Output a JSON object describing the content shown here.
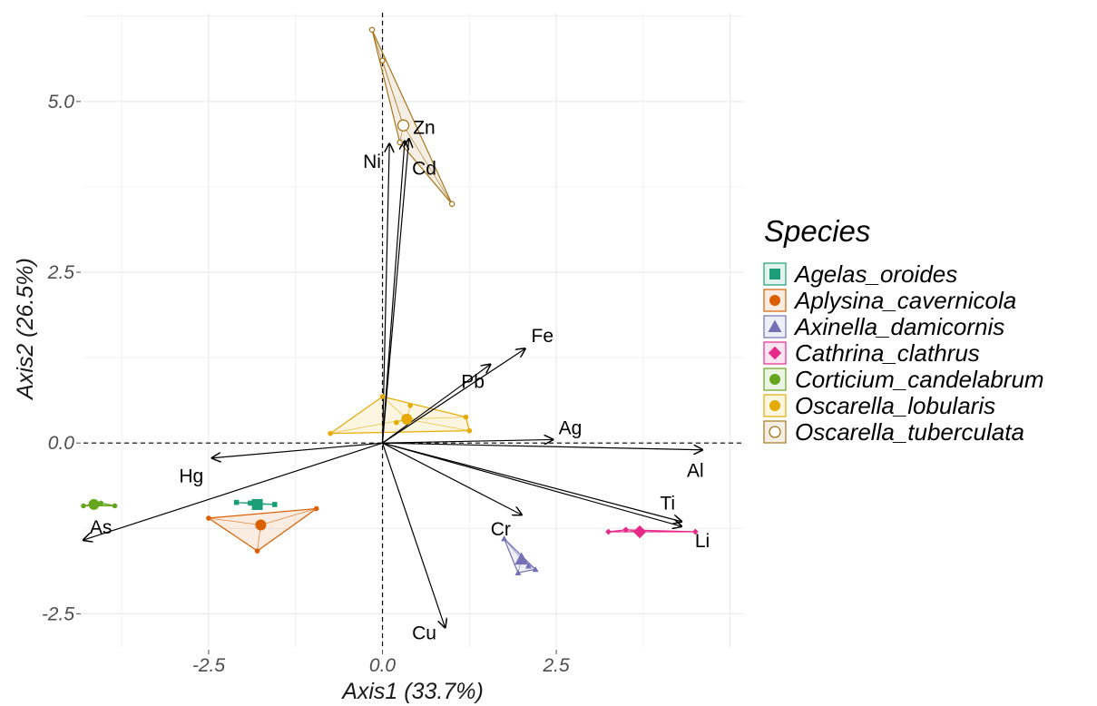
{
  "chart_data": {
    "type": "scatter",
    "subtype": "pca-biplot",
    "xlabel": "Axis1 (33.7%)",
    "ylabel": "Axis2 (26.5%)",
    "xlim": [
      -4.3,
      5.2
    ],
    "ylim": [
      -3.0,
      6.3
    ],
    "x_ticks": [
      -2.5,
      0.0,
      2.5
    ],
    "x_tick_labels": [
      "-2.5",
      "0.0",
      "2.5"
    ],
    "y_ticks": [
      -2.5,
      0.0,
      2.5,
      5.0
    ],
    "y_tick_labels": [
      "-2.5",
      "0.0",
      "2.5",
      "5.0"
    ],
    "grid": true,
    "reference_lines": {
      "x0": "dashed",
      "y0": "dashed"
    },
    "legend": {
      "title": "Species",
      "position": "right"
    },
    "series": [
      {
        "name": "Agelas_oroides",
        "color": "#1b9e77",
        "marker": "square",
        "points": [
          [
            -2.1,
            -0.87
          ],
          [
            -1.55,
            -0.9
          ],
          [
            -1.9,
            -0.88
          ]
        ],
        "centroid": [
          -1.8,
          -0.9
        ]
      },
      {
        "name": "Aplysina_cavernicola",
        "color": "#d95f02",
        "marker": "circle",
        "points": [
          [
            -2.5,
            -1.1
          ],
          [
            -1.8,
            -1.58
          ],
          [
            -0.95,
            -0.96
          ]
        ],
        "centroid": [
          -1.75,
          -1.2
        ]
      },
      {
        "name": "Axinella_damicornis",
        "color": "#7570b3",
        "marker": "triangle",
        "points": [
          [
            1.75,
            -1.4
          ],
          [
            2.2,
            -1.85
          ],
          [
            1.95,
            -1.9
          ],
          [
            2.1,
            -1.8
          ]
        ],
        "centroid": [
          2.0,
          -1.7
        ]
      },
      {
        "name": "Cathrina_clathrus",
        "color": "#e7298a",
        "marker": "diamond",
        "points": [
          [
            3.25,
            -1.3
          ],
          [
            3.5,
            -1.27
          ],
          [
            3.7,
            -1.3
          ],
          [
            4.5,
            -1.3
          ]
        ],
        "centroid": [
          3.7,
          -1.3
        ]
      },
      {
        "name": "Corticium_candelabrum",
        "color": "#66a61e",
        "marker": "circle",
        "points": [
          [
            -4.3,
            -0.92
          ],
          [
            -4.05,
            -0.88
          ],
          [
            -3.85,
            -0.92
          ]
        ],
        "centroid": [
          -4.15,
          -0.9
        ]
      },
      {
        "name": "Oscarella_lobularis",
        "color": "#e6ab02",
        "marker": "circle",
        "points": [
          [
            -0.75,
            0.14
          ],
          [
            0.0,
            0.68
          ],
          [
            0.4,
            0.55
          ],
          [
            1.2,
            0.38
          ],
          [
            1.25,
            0.18
          ],
          [
            0.2,
            0.3
          ]
        ],
        "centroid": [
          0.35,
          0.35
        ]
      },
      {
        "name": "Oscarella_tuberculata",
        "color": "#a6761d",
        "marker": "circle-open",
        "points": [
          [
            -0.15,
            6.05
          ],
          [
            0.0,
            5.6
          ],
          [
            1.0,
            3.5
          ],
          [
            0.25,
            4.4
          ]
        ],
        "centroid": [
          0.3,
          4.65
        ]
      }
    ],
    "variables": [
      {
        "name": "Zn",
        "x": 0.32,
        "y": 4.42,
        "label_x": 0.6,
        "label_y": 4.6
      },
      {
        "name": "Cd",
        "x": 0.38,
        "y": 4.45,
        "label_x": 0.6,
        "label_y": 4.0
      },
      {
        "name": "Ni",
        "x": 0.1,
        "y": 4.38,
        "label_x": -0.15,
        "label_y": 4.1
      },
      {
        "name": "Fe",
        "x": 2.05,
        "y": 1.38,
        "label_x": 2.3,
        "label_y": 1.55
      },
      {
        "name": "Pb",
        "x": 1.55,
        "y": 1.15,
        "label_x": 1.3,
        "label_y": 0.88
      },
      {
        "name": "Ag",
        "x": 2.45,
        "y": 0.05,
        "label_x": 2.7,
        "label_y": 0.2
      },
      {
        "name": "Al",
        "x": 4.6,
        "y": -0.1,
        "label_x": 4.5,
        "label_y": -0.42
      },
      {
        "name": "Ti",
        "x": 4.3,
        "y": -1.15,
        "label_x": 4.1,
        "label_y": -0.9
      },
      {
        "name": "Li",
        "x": 4.3,
        "y": -1.22,
        "label_x": 4.6,
        "label_y": -1.45
      },
      {
        "name": "Cr",
        "x": 2.0,
        "y": -1.05,
        "label_x": 1.7,
        "label_y": -1.28
      },
      {
        "name": "Cu",
        "x": 0.9,
        "y": -2.7,
        "label_x": 0.6,
        "label_y": -2.8
      },
      {
        "name": "Hg",
        "x": -2.45,
        "y": -0.22,
        "label_x": -2.75,
        "label_y": -0.5
      },
      {
        "name": "As",
        "x": -4.3,
        "y": -1.42,
        "label_x": -4.05,
        "label_y": -1.25
      }
    ]
  }
}
